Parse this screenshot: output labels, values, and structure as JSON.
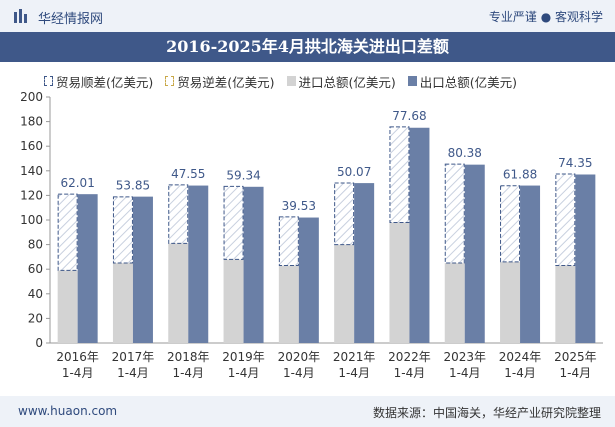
{
  "header": {
    "brand": "华经情报网",
    "tagline": "专业严谨 ● 客观科学"
  },
  "footer": {
    "site": "www.huaon.com",
    "source": "数据来源：中国海关，华经产业研究院整理"
  },
  "colors": {
    "surplus": "#3f5889",
    "deficit": "#c9a94a",
    "import": "#d3d3d3",
    "export": "#6a7fa6",
    "title_bg": "#3f5889"
  },
  "chart_data": {
    "type": "bar",
    "title": "2016-2025年4月拱北海关进出口差额",
    "categories": [
      "2016年\n1-4月",
      "2017年\n1-4月",
      "2018年\n1-4月",
      "2019年\n1-4月",
      "2020年\n1-4月",
      "2021年\n1-4月",
      "2022年\n1-4月",
      "2023年\n1-4月",
      "2024年\n1-4月",
      "2025年\n1-4月"
    ],
    "series": [
      {
        "name": "贸易顺差(亿美元)",
        "values": [
          62.01,
          53.85,
          47.55,
          59.34,
          39.53,
          50.07,
          77.68,
          80.38,
          61.88,
          74.35
        ]
      },
      {
        "name": "贸易逆差(亿美元)",
        "values": [
          0,
          0,
          0,
          0,
          0,
          0,
          0,
          0,
          0,
          0
        ]
      },
      {
        "name": "进口总额(亿美元)",
        "values": [
          59,
          65,
          81,
          68,
          63,
          80,
          98,
          65,
          66,
          63
        ]
      },
      {
        "name": "出口总额(亿美元)",
        "values": [
          121,
          119,
          128,
          127,
          102,
          130,
          175,
          145,
          128,
          137
        ]
      }
    ],
    "ylim": [
      0,
      200
    ],
    "yticks": [
      0,
      20,
      40,
      60,
      80,
      100,
      120,
      140,
      160,
      180,
      200
    ],
    "legend": "top-left",
    "grid": false,
    "data_labels": true
  }
}
